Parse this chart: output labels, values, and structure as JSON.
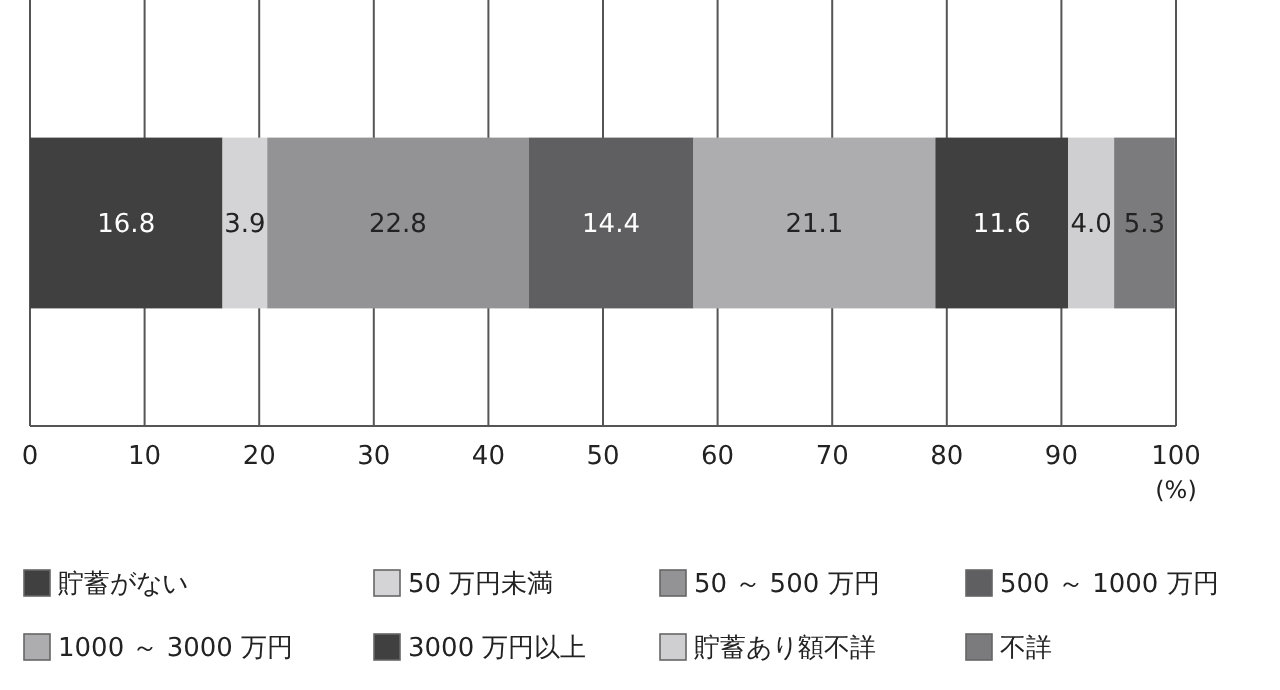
{
  "chart_data": {
    "type": "bar",
    "orientation": "horizontal",
    "stacked": true,
    "categories": [
      null
    ],
    "xlabel": "(%)",
    "xlim": [
      0,
      100
    ],
    "xticks": [
      0,
      10,
      20,
      30,
      40,
      50,
      60,
      70,
      80,
      90,
      100
    ],
    "grid": "x",
    "data_labels": true,
    "legend": "bottom",
    "series": [
      {
        "name": "貯蓄がない",
        "color": "#404040",
        "values": [
          16.8
        ]
      },
      {
        "name": "50 万円未満",
        "color": "#d4d4d6",
        "values": [
          3.9
        ]
      },
      {
        "name": "50 ～ 500 万円",
        "color": "#939396",
        "values": [
          22.8
        ]
      },
      {
        "name": "500 ～ 1000 万円",
        "color": "#5f5f61",
        "values": [
          14.4
        ]
      },
      {
        "name": "1000 ～ 3000 万円",
        "color": "#adadb0",
        "values": [
          21.1
        ]
      },
      {
        "name": "3000 万円以上",
        "color": "#404040",
        "values": [
          11.6
        ]
      },
      {
        "name": "貯蓄あり額不詳",
        "color": "#cfcfd1",
        "values": [
          4.0
        ],
        "value_labels": [
          "4.0"
        ]
      },
      {
        "name": "不詳",
        "color": "#7b7b7d",
        "values": [
          5.3
        ]
      }
    ]
  }
}
